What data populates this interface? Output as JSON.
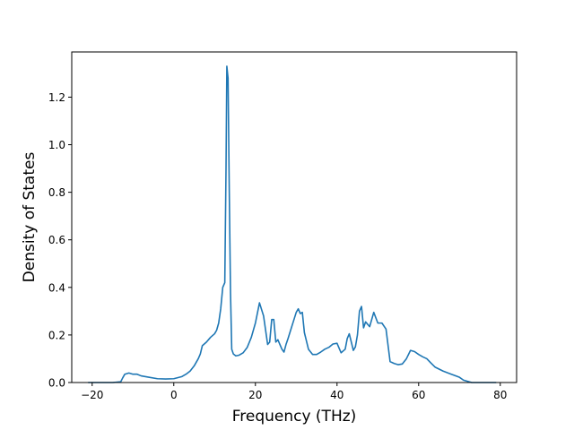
{
  "chart_data": {
    "type": "line",
    "xlabel": "Frequency (THz)",
    "ylabel": "Density of States",
    "xlim": [
      -25,
      84
    ],
    "ylim": [
      0,
      1.39
    ],
    "xticks": [
      -20,
      0,
      20,
      40,
      60,
      80
    ],
    "yticks": [
      0.0,
      0.2,
      0.4,
      0.6,
      0.8,
      1.0,
      1.2
    ],
    "ytick_labels": [
      "0.0",
      "0.2",
      "0.4",
      "0.6",
      "0.8",
      "1.0",
      "1.2"
    ],
    "xtick_labels": [
      "−20",
      "0",
      "20",
      "40",
      "60",
      "80"
    ],
    "grid": false,
    "series": [
      {
        "color": "#1f77b4",
        "x": [
          -21,
          -15,
          -13,
          -12.5,
          -12,
          -11,
          -10,
          -9,
          -8,
          -6,
          -4,
          -2,
          0,
          2,
          3,
          4,
          5,
          6,
          6.5,
          7,
          8,
          9,
          10,
          10.5,
          11,
          11.5,
          12,
          12.5,
          12.8,
          13,
          13.3,
          13.6,
          13.9,
          14.2,
          14.6,
          15.2,
          16,
          17,
          18,
          19,
          20,
          21,
          22,
          23,
          23.5,
          24,
          24.5,
          25,
          25.5,
          26,
          26.5,
          27,
          27.5,
          28,
          29,
          30,
          30.5,
          31,
          31.5,
          32,
          33,
          34,
          35,
          36,
          37,
          38,
          39,
          40,
          40.5,
          41,
          42,
          42.5,
          43,
          44,
          44.5,
          45,
          45.5,
          46,
          46.5,
          47,
          48,
          49,
          50,
          51,
          52,
          53,
          54,
          55,
          56,
          57,
          58,
          59,
          60,
          61,
          62,
          63,
          64,
          66,
          68,
          70,
          71,
          73,
          75,
          78,
          79
        ],
        "y": [
          0.0,
          0.0,
          0.003,
          0.02,
          0.035,
          0.04,
          0.035,
          0.035,
          0.028,
          0.022,
          0.016,
          0.015,
          0.016,
          0.025,
          0.035,
          0.048,
          0.07,
          0.1,
          0.12,
          0.155,
          0.17,
          0.19,
          0.205,
          0.22,
          0.25,
          0.31,
          0.4,
          0.42,
          0.9,
          1.33,
          1.28,
          0.8,
          0.38,
          0.14,
          0.12,
          0.112,
          0.115,
          0.125,
          0.148,
          0.19,
          0.25,
          0.335,
          0.28,
          0.16,
          0.17,
          0.265,
          0.265,
          0.17,
          0.18,
          0.16,
          0.14,
          0.128,
          0.16,
          0.185,
          0.24,
          0.295,
          0.31,
          0.29,
          0.295,
          0.21,
          0.14,
          0.118,
          0.118,
          0.128,
          0.14,
          0.148,
          0.162,
          0.165,
          0.145,
          0.125,
          0.14,
          0.185,
          0.205,
          0.135,
          0.15,
          0.2,
          0.3,
          0.32,
          0.23,
          0.255,
          0.235,
          0.295,
          0.25,
          0.25,
          0.225,
          0.088,
          0.08,
          0.075,
          0.078,
          0.1,
          0.135,
          0.13,
          0.118,
          0.108,
          0.1,
          0.082,
          0.065,
          0.048,
          0.035,
          0.022,
          0.01,
          0.0,
          0.0,
          0.0,
          0.0
        ]
      }
    ]
  }
}
